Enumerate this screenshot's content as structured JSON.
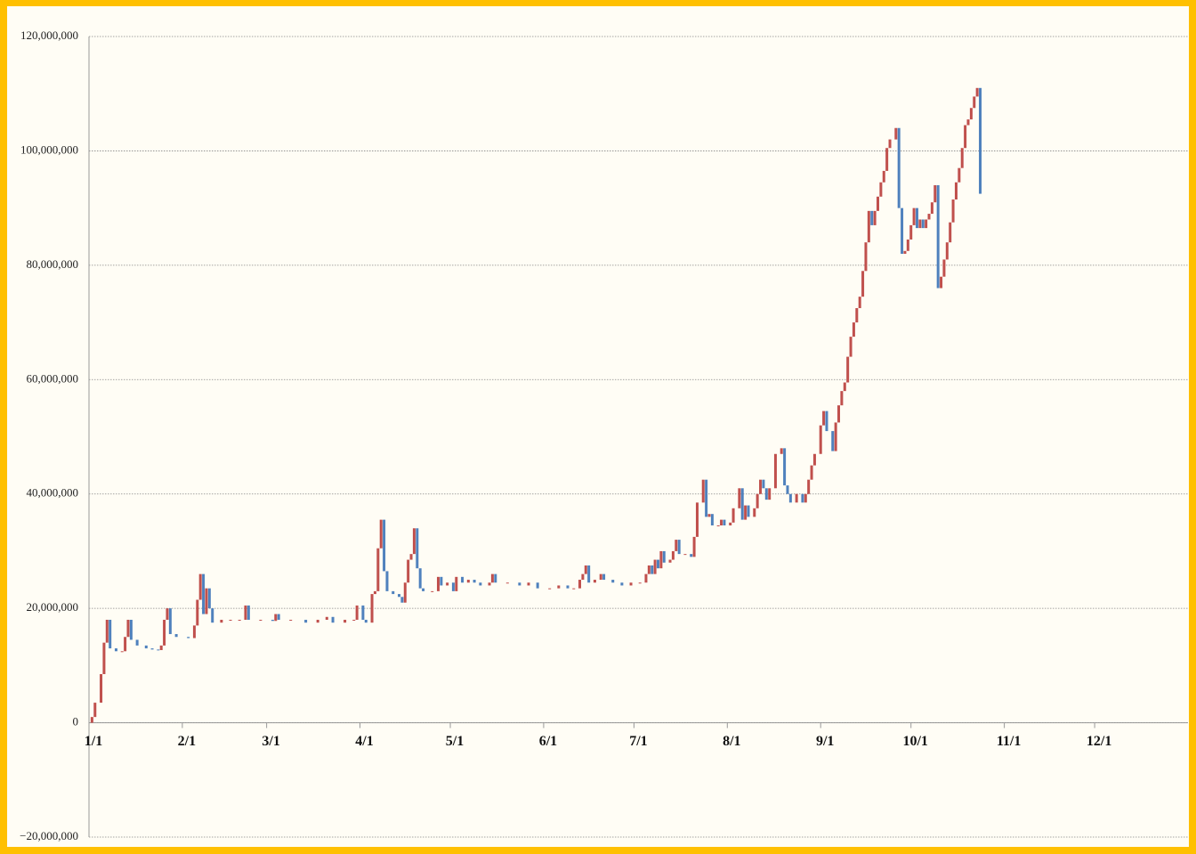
{
  "chart_data": {
    "type": "candlestick",
    "x": [
      0,
      1,
      2,
      4,
      5,
      6,
      7,
      9,
      11,
      12,
      13,
      14,
      16,
      19,
      21,
      23,
      24,
      25,
      26,
      27,
      29,
      33,
      35,
      36,
      37,
      38,
      39,
      40,
      41,
      44,
      47,
      50,
      52,
      53,
      57,
      61,
      62,
      63,
      67,
      72,
      76,
      79,
      81,
      85,
      88,
      89,
      91,
      92,
      94,
      95,
      96,
      97,
      98,
      99,
      101,
      103,
      104,
      105,
      106,
      107,
      108,
      109,
      110,
      111,
      114,
      116,
      117,
      119,
      121,
      122,
      124,
      126,
      128,
      130,
      133,
      134,
      135,
      139,
      143,
      146,
      149,
      153,
      156,
      159,
      161,
      163,
      164,
      165,
      166,
      168,
      170,
      171,
      174,
      177,
      180,
      183,
      185,
      186,
      187,
      188,
      189,
      190,
      191,
      193,
      194,
      195,
      196,
      198,
      200,
      201,
      202,
      204,
      205,
      206,
      207,
      209,
      210,
      211,
      213,
      214,
      216,
      217,
      218,
      219,
      221,
      222,
      223,
      224,
      225,
      226,
      228,
      230,
      231,
      232,
      233,
      235,
      237,
      238,
      239,
      240,
      241,
      243,
      244,
      245,
      247,
      248,
      249,
      250,
      251,
      252,
      253,
      254,
      255,
      256,
      257,
      258,
      259,
      260,
      261,
      262,
      263,
      264,
      265,
      266,
      268,
      269,
      270,
      271,
      272,
      273,
      274,
      275,
      276,
      277,
      278,
      279,
      280,
      281,
      282,
      283,
      284,
      285,
      286,
      287,
      288,
      289,
      290,
      291,
      292,
      293,
      294,
      295,
      296
    ],
    "values": [
      0,
      1000000,
      3500000,
      8500000,
      14000000,
      18000000,
      13000000,
      12500000,
      12500000,
      15000000,
      18000000,
      14500000,
      13500000,
      13000000,
      12800000,
      12700000,
      13500000,
      18000000,
      20000000,
      15500000,
      15000000,
      14800000,
      17000000,
      21500000,
      26000000,
      19000000,
      23500000,
      20000000,
      17500000,
      18000000,
      18000000,
      18000000,
      20500000,
      18000000,
      18000000,
      17800000,
      19000000,
      18000000,
      18000000,
      17500000,
      18000000,
      18500000,
      17500000,
      18000000,
      18000000,
      20500000,
      18000000,
      17500000,
      22500000,
      23000000,
      30500000,
      35500000,
      26500000,
      23000000,
      22500000,
      22000000,
      21000000,
      24500000,
      28500000,
      29500000,
      34000000,
      27000000,
      23500000,
      23000000,
      23000000,
      25500000,
      24000000,
      24500000,
      23000000,
      25500000,
      24500000,
      25000000,
      24500000,
      24000000,
      24500000,
      26000000,
      24500000,
      24500000,
      24000000,
      24500000,
      23500000,
      23500000,
      24000000,
      23500000,
      23500000,
      25000000,
      26000000,
      27500000,
      24500000,
      25000000,
      26000000,
      25000000,
      24500000,
      24000000,
      24500000,
      24500000,
      26000000,
      27500000,
      26000000,
      28500000,
      27000000,
      30000000,
      28000000,
      28500000,
      30000000,
      32000000,
      29500000,
      29500000,
      29000000,
      32500000,
      38500000,
      42500000,
      36000000,
      36500000,
      34500000,
      34500000,
      35500000,
      34500000,
      35000000,
      37500000,
      41000000,
      35500000,
      38000000,
      36000000,
      37500000,
      40000000,
      42500000,
      41000000,
      39000000,
      41000000,
      47000000,
      48000000,
      41500000,
      40000000,
      38500000,
      40000000,
      38500000,
      40000000,
      42500000,
      45000000,
      47000000,
      52000000,
      54500000,
      51000000,
      47500000,
      52500000,
      55500000,
      58000000,
      59500000,
      64000000,
      67500000,
      70000000,
      72500000,
      74500000,
      79000000,
      84000000,
      89500000,
      87000000,
      89500000,
      92000000,
      94500000,
      96500000,
      100500000,
      102000000,
      104000000,
      90000000,
      82000000,
      82500000,
      84500000,
      87000000,
      90000000,
      86500000,
      88000000,
      86500000,
      88000000,
      89000000,
      91000000,
      94000000,
      76000000,
      78000000,
      81000000,
      84000000,
      87500000,
      91500000,
      94500000,
      97000000,
      100500000,
      104500000,
      105500000,
      107500000,
      109500000,
      111000000,
      92500000
    ],
    "up_color": "#c0504d",
    "down_color": "#4f81bd",
    "negative_color": "#ff0000",
    "xlim": [
      0,
      365
    ],
    "xticks": [
      {
        "value": 0,
        "label": "1/1"
      },
      {
        "value": 31,
        "label": "2/1"
      },
      {
        "value": 59,
        "label": "3/1"
      },
      {
        "value": 90,
        "label": "4/1"
      },
      {
        "value": 120,
        "label": "5/1"
      },
      {
        "value": 151,
        "label": "6/1"
      },
      {
        "value": 181,
        "label": "7/1"
      },
      {
        "value": 212,
        "label": "8/1"
      },
      {
        "value": 243,
        "label": "9/1"
      },
      {
        "value": 273,
        "label": "10/1"
      },
      {
        "value": 304,
        "label": "11/1"
      },
      {
        "value": 334,
        "label": "12/1"
      }
    ],
    "ylim": [
      -20000000,
      120000000
    ],
    "yticks": [
      {
        "value": -20000000,
        "label": "−20,000,000"
      },
      0,
      {
        "value": 20000000,
        "label": "20,000,000"
      },
      {
        "value": 40000000,
        "label": "40,000,000"
      },
      {
        "value": 60000000,
        "label": "60,000,000"
      },
      {
        "value": 80000000,
        "label": "80,000,000"
      },
      {
        "value": 100000000,
        "label": "100,000,000"
      },
      {
        "value": 120000000,
        "label": "120,000,000"
      }
    ],
    "grid": true
  }
}
